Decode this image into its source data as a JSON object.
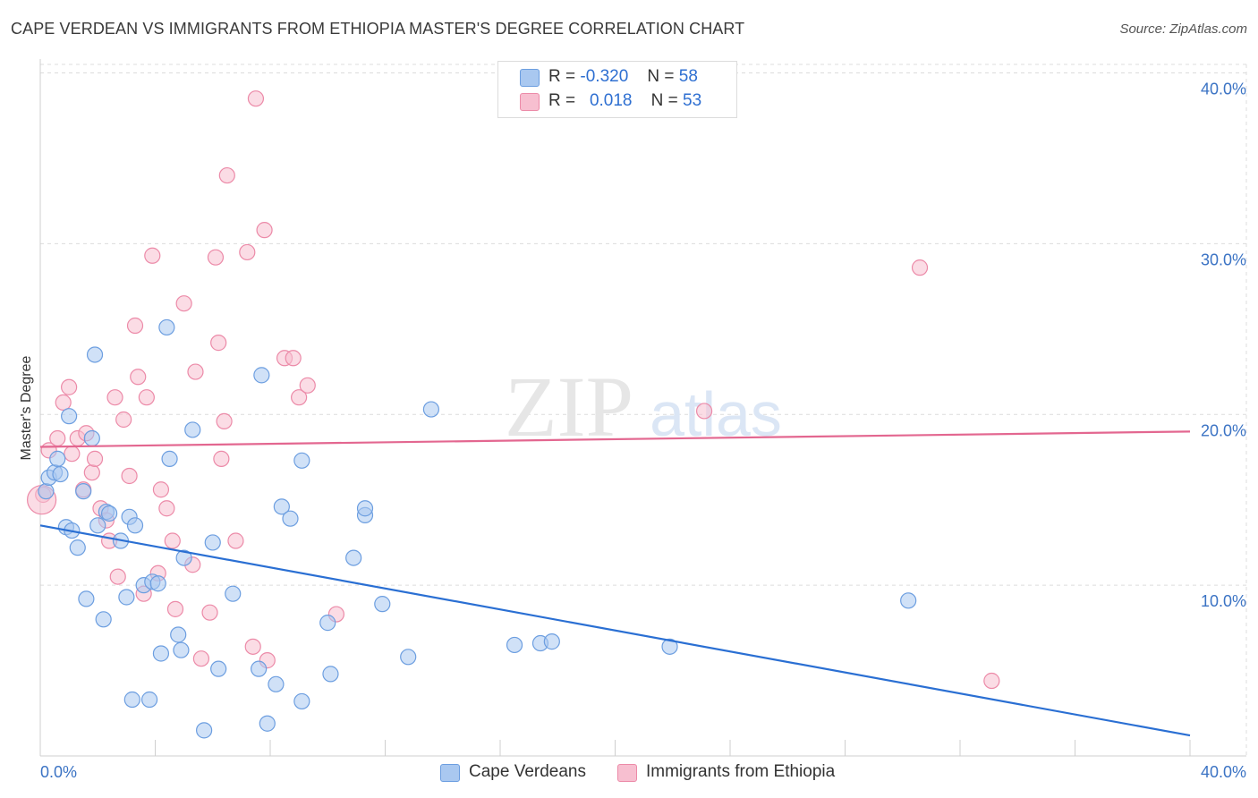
{
  "title": "CAPE VERDEAN VS IMMIGRANTS FROM ETHIOPIA MASTER'S DEGREE CORRELATION CHART",
  "source": "Source: ZipAtlas.com",
  "watermark": {
    "zip": "ZIP",
    "atlas": "atlas"
  },
  "legend": {
    "rows": [
      {
        "r_label": "R =",
        "r_value": "-0.320",
        "n_label": "N =",
        "n_value": "58",
        "color": "#a9c8f0"
      },
      {
        "r_label": "R =",
        "r_value": "0.018",
        "n_label": "N =",
        "n_value": "53",
        "color": "#f7bfd0"
      }
    ]
  },
  "bottom_legend": [
    "Cape Verdeans",
    "Immigrants from Ethiopia"
  ],
  "colors": {
    "blue_fill": "#a9c8f0",
    "blue_stroke": "#6c9ee0",
    "blue_line": "#2a6fd3",
    "pink_fill": "#f7bfd0",
    "pink_stroke": "#ec8aa8",
    "pink_line": "#e36790",
    "grid": "#dcdcdc",
    "tick_text": "#3b73c4"
  },
  "chart_data": {
    "type": "scatter",
    "title": "CAPE VERDEAN VS IMMIGRANTS FROM ETHIOPIA MASTER'S DEGREE CORRELATION CHART",
    "xlabel": "",
    "ylabel": "Master's Degree",
    "xlim": [
      0,
      40
    ],
    "ylim": [
      0,
      40.5
    ],
    "x_tick_labels": [
      "0.0%",
      "40.0%"
    ],
    "y_ticks": [
      10,
      20,
      30,
      40
    ],
    "y_tick_labels": [
      "10.0%",
      "20.0%",
      "30.0%",
      "40.0%"
    ],
    "grid": true,
    "series": [
      {
        "name": "Cape Verdeans",
        "trend": [
          [
            0,
            13.5
          ],
          [
            40,
            1.2
          ]
        ],
        "points": [
          [
            0.2,
            15.5
          ],
          [
            0.3,
            16.3
          ],
          [
            0.5,
            16.6
          ],
          [
            0.6,
            17.4
          ],
          [
            0.7,
            16.5
          ],
          [
            0.9,
            13.4
          ],
          [
            1.0,
            19.9
          ],
          [
            1.1,
            13.2
          ],
          [
            1.3,
            12.2
          ],
          [
            1.5,
            15.5
          ],
          [
            1.6,
            9.2
          ],
          [
            1.8,
            18.6
          ],
          [
            1.9,
            23.5
          ],
          [
            2.0,
            13.5
          ],
          [
            2.2,
            8.0
          ],
          [
            2.3,
            14.3
          ],
          [
            2.4,
            14.2
          ],
          [
            2.8,
            12.6
          ],
          [
            3.0,
            9.3
          ],
          [
            3.1,
            14.0
          ],
          [
            3.2,
            3.3
          ],
          [
            3.3,
            13.5
          ],
          [
            3.6,
            10.0
          ],
          [
            3.8,
            3.3
          ],
          [
            3.9,
            10.2
          ],
          [
            4.1,
            10.1
          ],
          [
            4.2,
            6.0
          ],
          [
            4.4,
            25.1
          ],
          [
            4.5,
            17.4
          ],
          [
            4.8,
            7.1
          ],
          [
            4.9,
            6.2
          ],
          [
            5.0,
            11.6
          ],
          [
            5.3,
            19.1
          ],
          [
            5.7,
            1.5
          ],
          [
            6.0,
            12.5
          ],
          [
            6.2,
            5.1
          ],
          [
            6.7,
            9.5
          ],
          [
            7.6,
            5.1
          ],
          [
            7.7,
            22.3
          ],
          [
            7.9,
            1.9
          ],
          [
            8.2,
            4.2
          ],
          [
            8.4,
            14.6
          ],
          [
            8.7,
            13.9
          ],
          [
            9.1,
            3.2
          ],
          [
            9.1,
            17.3
          ],
          [
            10.0,
            7.8
          ],
          [
            10.1,
            4.8
          ],
          [
            10.9,
            11.6
          ],
          [
            11.3,
            14.1
          ],
          [
            11.3,
            14.5
          ],
          [
            11.9,
            8.9
          ],
          [
            12.8,
            5.8
          ],
          [
            13.6,
            20.3
          ],
          [
            16.5,
            6.5
          ],
          [
            17.4,
            6.6
          ],
          [
            17.8,
            6.7
          ],
          [
            21.9,
            6.4
          ],
          [
            30.2,
            9.1
          ]
        ]
      },
      {
        "name": "Immigrants from Ethiopia",
        "trend": [
          [
            0,
            18.1
          ],
          [
            40,
            19.0
          ]
        ],
        "points": [
          [
            0.1,
            15.3
          ],
          [
            0.3,
            17.9
          ],
          [
            0.6,
            18.6
          ],
          [
            0.8,
            20.7
          ],
          [
            1.0,
            21.6
          ],
          [
            1.1,
            17.7
          ],
          [
            1.3,
            18.6
          ],
          [
            1.5,
            15.6
          ],
          [
            1.6,
            18.9
          ],
          [
            1.8,
            16.6
          ],
          [
            1.9,
            17.4
          ],
          [
            2.1,
            14.5
          ],
          [
            2.3,
            13.8
          ],
          [
            2.4,
            12.6
          ],
          [
            2.6,
            21.0
          ],
          [
            2.7,
            10.5
          ],
          [
            2.9,
            19.7
          ],
          [
            3.1,
            16.4
          ],
          [
            3.3,
            25.2
          ],
          [
            3.4,
            22.2
          ],
          [
            3.6,
            9.5
          ],
          [
            3.7,
            21.0
          ],
          [
            3.9,
            29.3
          ],
          [
            4.1,
            10.7
          ],
          [
            4.2,
            15.6
          ],
          [
            4.4,
            14.5
          ],
          [
            4.6,
            12.6
          ],
          [
            4.7,
            8.6
          ],
          [
            5.0,
            26.5
          ],
          [
            5.3,
            11.2
          ],
          [
            5.4,
            22.5
          ],
          [
            5.6,
            5.7
          ],
          [
            5.9,
            8.4
          ],
          [
            6.1,
            29.2
          ],
          [
            6.2,
            24.2
          ],
          [
            6.3,
            17.4
          ],
          [
            6.4,
            19.6
          ],
          [
            6.5,
            34.0
          ],
          [
            6.8,
            12.6
          ],
          [
            7.2,
            29.5
          ],
          [
            7.4,
            6.4
          ],
          [
            7.5,
            38.5
          ],
          [
            7.8,
            30.8
          ],
          [
            7.9,
            5.6
          ],
          [
            8.5,
            23.3
          ],
          [
            8.8,
            23.3
          ],
          [
            9.0,
            21.0
          ],
          [
            9.3,
            21.7
          ],
          [
            10.3,
            8.3
          ],
          [
            23.1,
            20.2
          ],
          [
            30.6,
            28.6
          ],
          [
            33.1,
            4.4
          ],
          [
            0.05,
            15.0
          ]
        ]
      }
    ]
  }
}
